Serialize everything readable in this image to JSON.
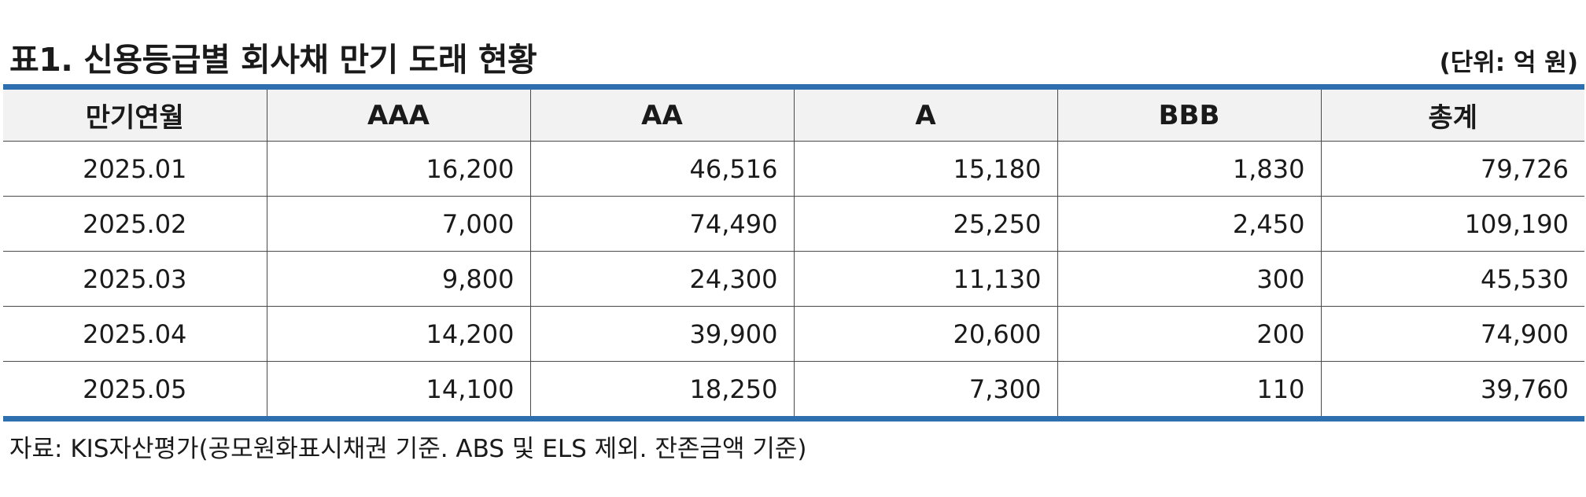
{
  "title": "표1. 신용등급별 회사채 만기 도래 현황",
  "unit": "(단위: 억 원)",
  "table": {
    "headers": [
      "만기연월",
      "AAA",
      "AA",
      "A",
      "BBB",
      "총계"
    ],
    "rows": [
      [
        "2025.01",
        "16,200",
        "46,516",
        "15,180",
        "1,830",
        "79,726"
      ],
      [
        "2025.02",
        "7,000",
        "74,490",
        "25,250",
        "2,450",
        "109,190"
      ],
      [
        "2025.03",
        "9,800",
        "24,300",
        "11,130",
        "300",
        "45,530"
      ],
      [
        "2025.04",
        "14,200",
        "39,900",
        "20,600",
        "200",
        "74,900"
      ],
      [
        "2025.05",
        "14,100",
        "18,250",
        "7,300",
        "110",
        "39,760"
      ]
    ]
  },
  "source": "자료: KIS자산평가(공모원화표시채권 기준. ABS 및 ELS 제외. 잔존금액 기준)",
  "colors": {
    "accent_rule": "#2e6fb0",
    "header_bg": "#f2f2f2"
  }
}
